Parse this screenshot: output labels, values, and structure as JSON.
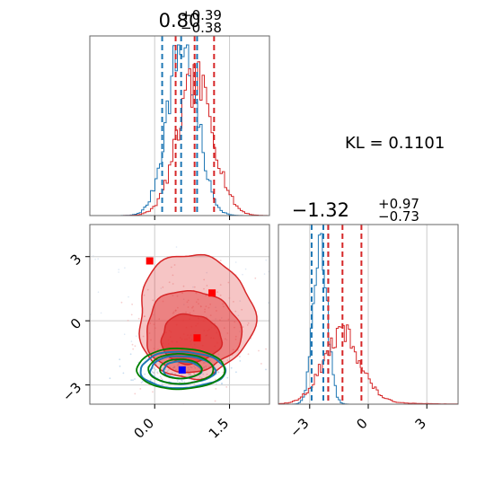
{
  "chart_data": {
    "type": "corner",
    "annotation": "KL = 0.1101",
    "colors": {
      "blue": "#1f77b4",
      "red": "#d62728",
      "green": "#008000",
      "fill_red": "#e03030"
    },
    "param1": {
      "title_main": "0.80",
      "title_plus": "+0.39",
      "title_minus": "−0.38",
      "ticks": [
        0.0,
        1.5
      ],
      "tick_labels": [
        "0.0",
        "1.5"
      ],
      "xlim": [
        -1.3,
        2.3
      ],
      "blue_quantiles": [
        0.15,
        0.53,
        0.85
      ],
      "red_quantiles": [
        0.42,
        0.8,
        1.19
      ],
      "blue_hist": {
        "center": 0.55,
        "sd": 0.3,
        "peak": 1.0
      },
      "red_hist": {
        "center": 0.82,
        "sd": 0.36,
        "peak": 0.78
      }
    },
    "param2": {
      "title_main": "−1.32",
      "title_plus": "+0.97",
      "title_minus": "−0.73",
      "ticks": [
        -3,
        0,
        3
      ],
      "tick_labels": [
        "−3",
        "0",
        "3"
      ],
      "xlim": [
        -4.6,
        4.6
      ],
      "blue_quantiles": [
        -2.9,
        -2.3,
        -2.05
      ],
      "red_quantiles": [
        -2.05,
        -1.32,
        -0.35
      ],
      "blue_hist": {
        "center": -2.45,
        "sd": 0.35,
        "peak": 1.0
      },
      "red_hist": {
        "center": -1.4,
        "sd": 0.95,
        "peak": 0.38
      }
    },
    "scatter2d": {
      "xlim": [
        -1.3,
        2.3
      ],
      "ylim": [
        -3.9,
        4.5
      ],
      "red_markers": [
        [
          -0.1,
          2.8
        ],
        [
          1.15,
          1.3
        ],
        [
          0.85,
          -0.8
        ]
      ],
      "blue_marker": [
        0.55,
        -2.3
      ],
      "red_contours": [
        {
          "cx": 0.72,
          "cy": -0.85,
          "rx": 0.6,
          "ry": 1.15
        },
        {
          "cx": 0.75,
          "cy": -0.5,
          "rx": 0.95,
          "ry": 1.9
        },
        {
          "cx": 0.8,
          "cy": 0.2,
          "rx": 1.15,
          "ry": 2.9
        }
      ],
      "blue_contours": [
        {
          "cx": 0.55,
          "cy": -2.3,
          "rx": 0.38,
          "ry": 0.4
        },
        {
          "cx": 0.55,
          "cy": -2.3,
          "rx": 0.65,
          "ry": 0.65
        },
        {
          "cx": 0.55,
          "cy": -2.3,
          "rx": 0.85,
          "ry": 0.85
        }
      ],
      "green_contours": [
        {
          "cx": 0.52,
          "cy": -2.25,
          "rx": 0.42,
          "ry": 0.45
        },
        {
          "cx": 0.52,
          "cy": -2.25,
          "rx": 0.65,
          "ry": 0.7
        },
        {
          "cx": 0.52,
          "cy": -2.25,
          "rx": 0.88,
          "ry": 0.95
        }
      ]
    }
  }
}
